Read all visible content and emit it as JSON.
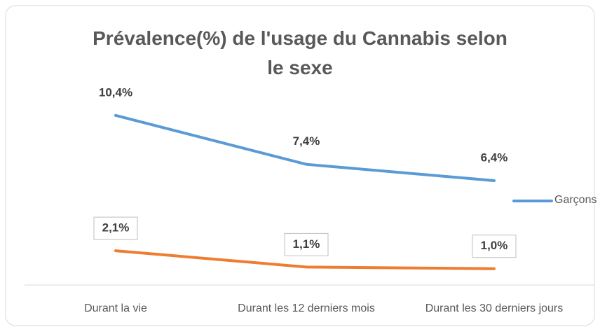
{
  "chart_data": {
    "type": "line",
    "title": "Prévalence(%) de l'usage du Cannabis selon le sexe",
    "categories": [
      "Durant la vie",
      "Durant les 12 derniers mois",
      "Durant les 30 derniers jours"
    ],
    "series": [
      {
        "name": "Garçons",
        "color": "#5b9bd5",
        "values": [
          10.4,
          7.4,
          6.4
        ],
        "value_labels": [
          "10,4%",
          "7,4%",
          "6,4%"
        ]
      },
      {
        "color": "#ed7d31",
        "values": [
          2.1,
          1.1,
          1.0
        ],
        "value_labels": [
          "2,1%",
          "1,1%",
          "1,0%"
        ]
      }
    ],
    "ylim": [
      0,
      14
    ],
    "legend": "right"
  }
}
